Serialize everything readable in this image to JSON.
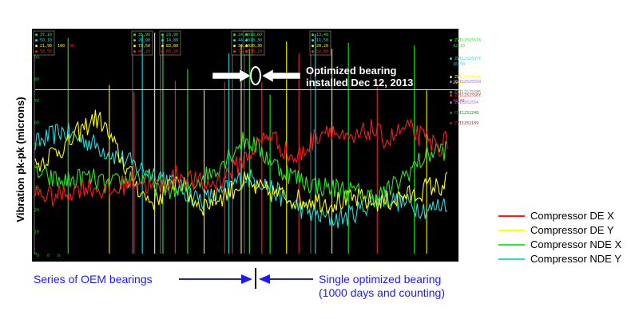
{
  "chart_data": {
    "type": "line",
    "ylabel": "Vibration pk-pk (microns)",
    "yticks": [
      "90",
      "80",
      "70",
      "60",
      "50",
      "40",
      "30",
      "20",
      "10",
      "0"
    ],
    "xticks_bottom": [
      "0",
      "0",
      "0"
    ],
    "series": [
      {
        "name": "Compressor DE X",
        "color": "#ff1a1a",
        "values": [
          28,
          27,
          26,
          27,
          28,
          30,
          31,
          30,
          29,
          28,
          30,
          33,
          34,
          32,
          30,
          31,
          34,
          36,
          35,
          33,
          31,
          32,
          34,
          37,
          40,
          44,
          48,
          52,
          55,
          50,
          46,
          43,
          47,
          52,
          56,
          58,
          54,
          51,
          52,
          55,
          57,
          54,
          52,
          55,
          57,
          56,
          53,
          51,
          49,
          52
        ]
      },
      {
        "name": "Compressor DE Y",
        "color": "#ffff00",
        "values": [
          40,
          43,
          46,
          48,
          50,
          55,
          58,
          62,
          60,
          52,
          45,
          38,
          32,
          26,
          24,
          27,
          30,
          35,
          28,
          24,
          22,
          24,
          26,
          28,
          31,
          33,
          30,
          29,
          28,
          27,
          26,
          25,
          24,
          25,
          24,
          23,
          24,
          24,
          25,
          25,
          23,
          24,
          24,
          25,
          27,
          26,
          29,
          31,
          30,
          33
        ]
      },
      {
        "name": "Compressor NDE X",
        "color": "#22ee22",
        "values": [
          38,
          35,
          34,
          33,
          33,
          34,
          35,
          34,
          32,
          31,
          33,
          34,
          36,
          34,
          32,
          31,
          30,
          28,
          30,
          33,
          35,
          37,
          41,
          45,
          49,
          52,
          50,
          46,
          43,
          39,
          37,
          35,
          33,
          32,
          31,
          30,
          30,
          29,
          28,
          27,
          26,
          27,
          29,
          32,
          36,
          40,
          43,
          46,
          48,
          47
        ]
      },
      {
        "name": "Compressor NDE Y",
        "color": "#22dddd",
        "values": [
          50,
          52,
          54,
          56,
          55,
          53,
          52,
          50,
          48,
          46,
          44,
          42,
          40,
          38,
          37,
          36,
          33,
          30,
          28,
          26,
          25,
          26,
          27,
          30,
          33,
          35,
          34,
          33,
          30,
          27,
          24,
          22,
          20,
          18,
          17,
          16,
          16,
          17,
          19,
          21,
          24,
          26,
          25,
          24,
          23,
          22,
          21,
          20,
          22,
          24
        ]
      }
    ],
    "ylim": [
      0,
      100
    ],
    "grid": false,
    "reference_line": 75,
    "spike_positions": [
      0.08,
      0.18,
      0.24,
      0.26,
      0.29,
      0.31,
      0.34,
      0.37,
      0.41,
      0.46,
      0.47,
      0.5,
      0.52,
      0.55,
      0.57,
      0.61,
      0.64,
      0.68,
      0.72,
      0.76,
      0.83,
      0.92,
      0.95
    ],
    "annotations": {
      "install": "Optimized bearing\ninstalled Dec 12, 2013",
      "oem": "Series of OEM bearings",
      "optimized": "Single optimized bearing\n(1000 days and counting)"
    },
    "cursor_boxes": [
      {
        "vals": [
          "37,10",
          "50,10",
          "21,90",
          "50,50"
        ],
        "extra": [
          "100",
          "100"
        ]
      },
      {
        "vals": [
          "35,90",
          "20,90",
          "73,50",
          "46,20"
        ]
      },
      {
        "vals": [
          "23,90",
          "14,80",
          "83,80",
          "60,20"
        ]
      },
      {
        "vals": [
          "24,80",
          "44,40",
          "34,40",
          "75,80"
        ]
      },
      {
        "vals": [
          "18,60",
          "18,30",
          "20,30",
          "50,20"
        ]
      },
      {
        "vals": [
          "13,40",
          "11,50",
          "20,20",
          "52,60"
        ]
      }
    ],
    "right_panel": [
      {
        "tag": "ZVI1252557X",
        "val": "42,10",
        "color": "#22ee22"
      },
      {
        "tag": "ZVI1252537Y",
        "val": "16,50",
        "color": "#22dddd"
      },
      {
        "tag": "ZVI1252556X",
        "val": "29,20",
        "color": "#ffff00"
      },
      {
        "tag": "ZVI1252556Y",
        "val": "49,61",
        "color": "#ff2222"
      },
      {
        "tag": "ZZI125255X4",
        "val": "",
        "color": "#aa66ff"
      },
      {
        "tag": "ZZI125255M5",
        "val": "",
        "color": "#888888"
      },
      {
        "tag": "ZVI1252554",
        "val": "",
        "color": "#aa66ff"
      },
      {
        "tag": "FDI1252248",
        "val": "",
        "color": "#228822"
      },
      {
        "tag": "ZVI1252109",
        "val": "",
        "color": "#aa2222"
      }
    ]
  }
}
